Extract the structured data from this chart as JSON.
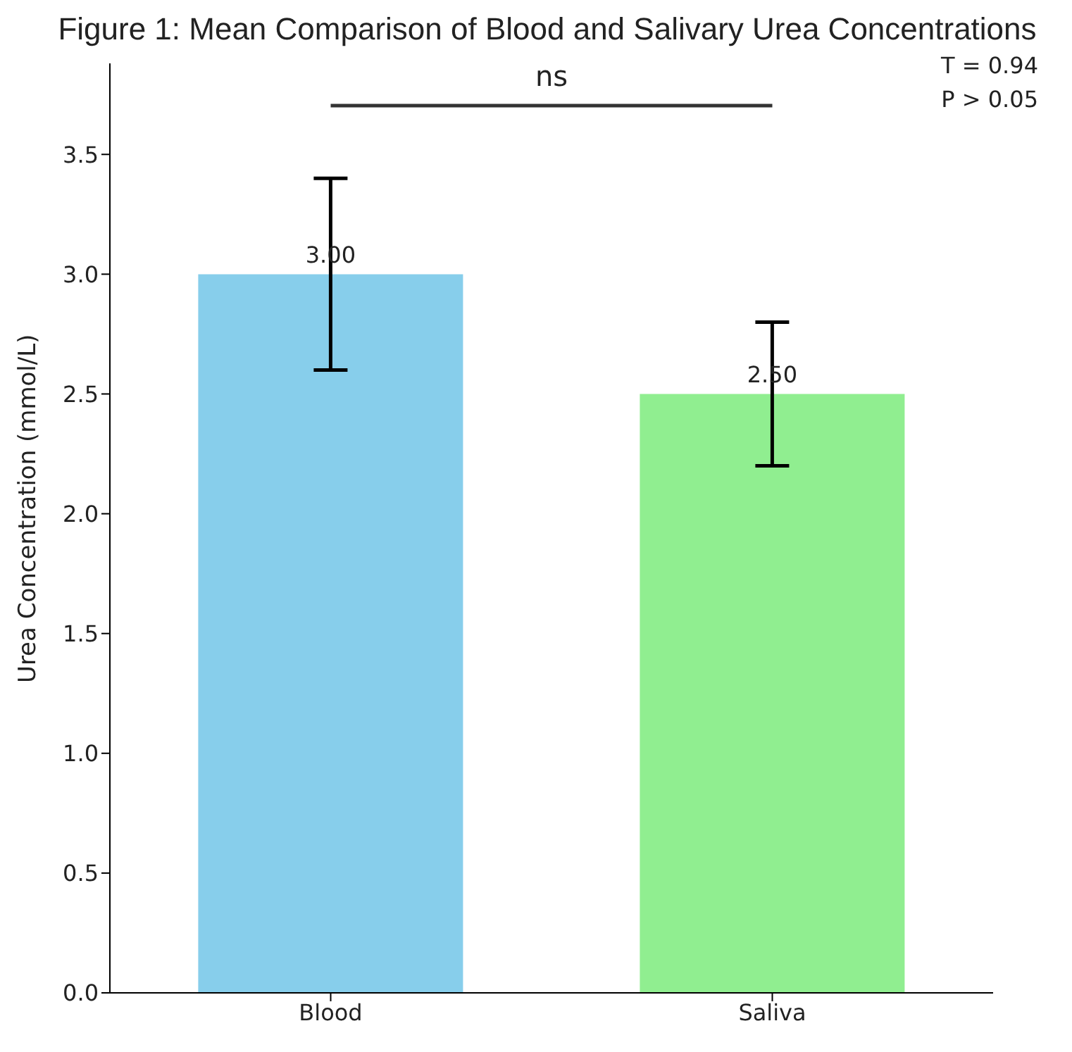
{
  "chart_data": {
    "type": "bar",
    "title": "Figure 1: Mean Comparison of Blood and Salivary Urea Concentrations",
    "ylabel": "Urea Concentration (mmol/L)",
    "categories": [
      "Blood",
      "Saliva"
    ],
    "values": [
      3.0,
      2.5
    ],
    "colors": [
      "#87ceeb",
      "#90ee90"
    ],
    "errors": [
      0.4,
      0.3
    ],
    "value_labels": [
      "3.00",
      "2.50"
    ],
    "ylim": [
      0,
      3.88
    ],
    "yticks": [
      {
        "value": 0,
        "label": "0.0"
      },
      0.5,
      {
        "value": 1,
        "label": "1.0"
      },
      1.5,
      {
        "value": 2,
        "label": "2.0"
      },
      2.5,
      {
        "value": 3,
        "label": "3.0"
      },
      3.5
    ],
    "annotations": [
      "ns",
      "T = 0.94",
      "P > 0.05"
    ],
    "grid": false,
    "legend": false
  }
}
